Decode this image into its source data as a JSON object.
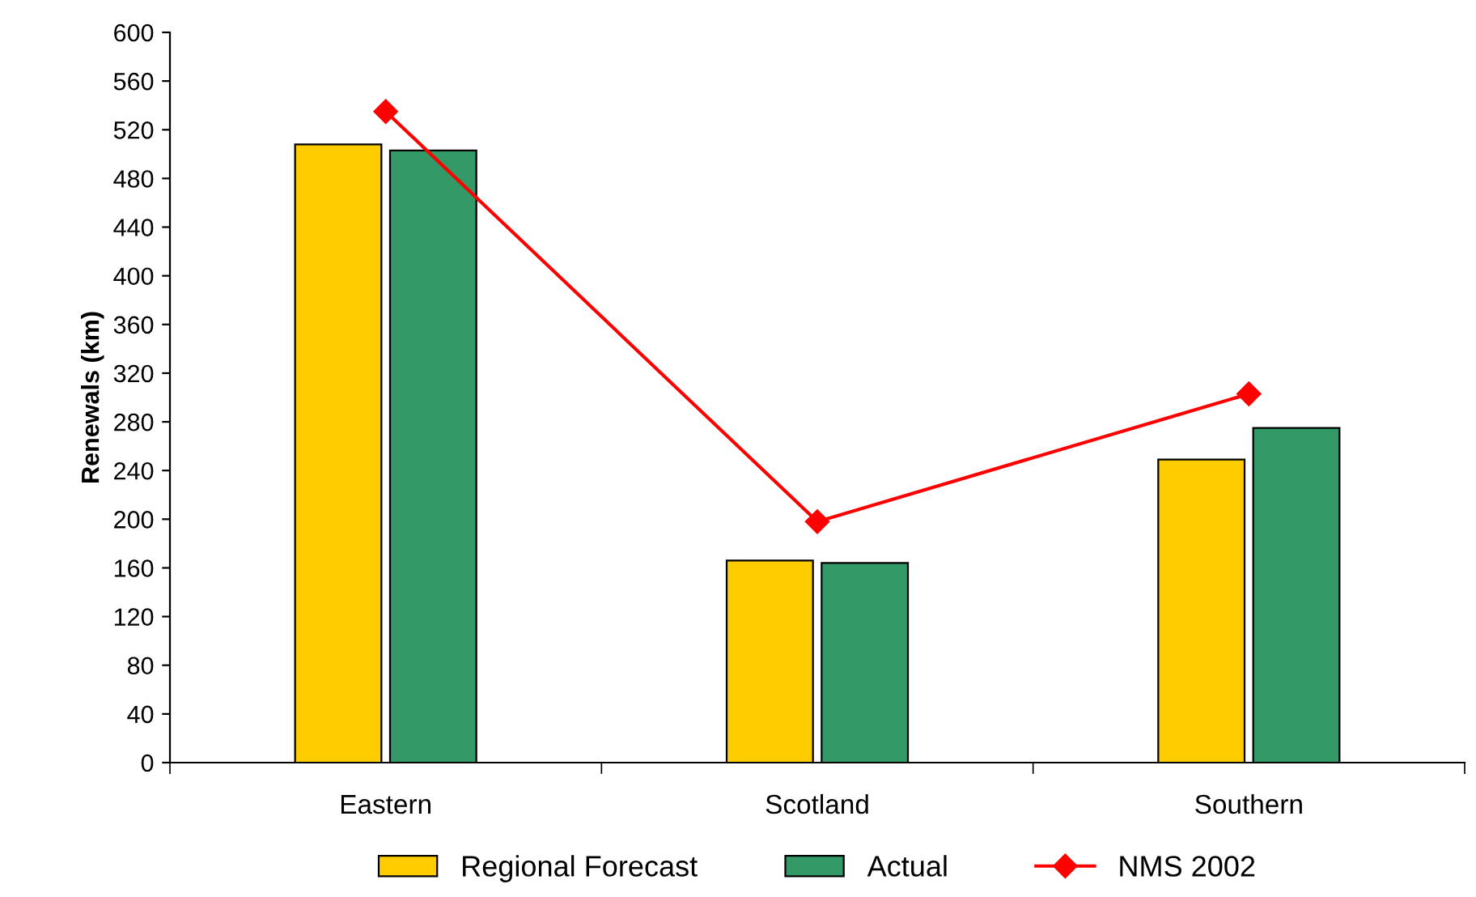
{
  "chart_data": {
    "type": "bar",
    "ylabel": "Renewals (km)",
    "categories": [
      "Eastern",
      "Scotland",
      "Southern"
    ],
    "series": [
      {
        "name": "Regional Forecast",
        "color": "#ffcc00",
        "values": [
          508,
          166,
          249
        ]
      },
      {
        "name": "Actual",
        "color": "#339966",
        "values": [
          503,
          164,
          275
        ]
      },
      {
        "name": "NMS 2002",
        "color": "#ff0000",
        "type": "line",
        "marker": "diamond",
        "values": [
          535,
          198,
          303
        ]
      }
    ],
    "ylim": [
      0,
      600
    ],
    "yticks": [
      0,
      40,
      80,
      120,
      160,
      200,
      240,
      280,
      320,
      360,
      400,
      440,
      480,
      520,
      560,
      600
    ],
    "grid": false,
    "legend": "bottom"
  }
}
